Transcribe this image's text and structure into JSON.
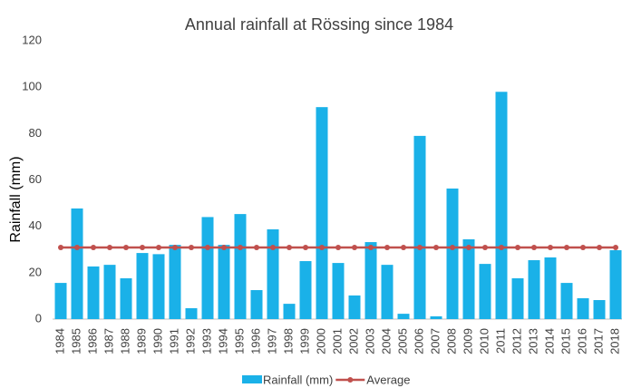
{
  "chart_data": {
    "type": "bar",
    "title": "Annual rainfall at Rössing since 1984",
    "y_label": "Rainfall (mm)",
    "categories": [
      "1984",
      "1985",
      "1986",
      "1987",
      "1988",
      "1989",
      "1990",
      "1991",
      "1992",
      "1993",
      "1994",
      "1995",
      "1996",
      "1997",
      "1998",
      "1999",
      "2000",
      "2001",
      "2002",
      "2003",
      "2004",
      "2005",
      "2006",
      "2007",
      "2008",
      "2009",
      "2010",
      "2011",
      "2012",
      "2013",
      "2014",
      "2015",
      "2016",
      "2017",
      "2018"
    ],
    "series": [
      {
        "name": "Rainfall (mm)",
        "type": "bar",
        "color": "#1ab1e8",
        "values": [
          15.6,
          47.7,
          22.7,
          23.4,
          17.6,
          28.5,
          28,
          32,
          4.7,
          44,
          32,
          45.3,
          12.5,
          38.7,
          6.6,
          25,
          91.4,
          24.2,
          10.2,
          33.2,
          23.4,
          2.3,
          79,
          1.2,
          56.3,
          34.4,
          23.8,
          98,
          17.6,
          25.4,
          26.6,
          15.6,
          9,
          8.2,
          29.7
        ]
      },
      {
        "name": "Average",
        "type": "line",
        "color": "#c0504d",
        "values": [
          30.9,
          30.9,
          30.9,
          30.9,
          30.9,
          30.9,
          30.9,
          30.9,
          30.9,
          30.9,
          30.9,
          30.9,
          30.9,
          30.9,
          30.9,
          30.9,
          30.9,
          30.9,
          30.9,
          30.9,
          30.9,
          30.9,
          30.9,
          30.9,
          30.9,
          30.9,
          30.9,
          30.9,
          30.9,
          30.9,
          30.9,
          30.9,
          30.9,
          30.9,
          30.9
        ]
      }
    ],
    "ylim": [
      0,
      120
    ],
    "yticks": [
      0,
      20,
      40,
      60,
      80,
      100,
      120
    ],
    "grid": false,
    "legend": "bottom"
  }
}
